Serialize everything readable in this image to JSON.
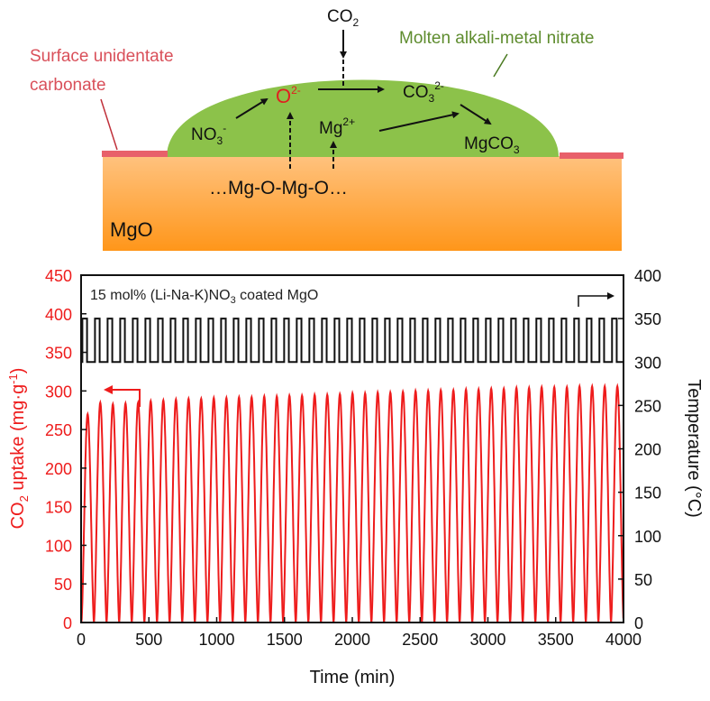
{
  "schematic": {
    "co2": "CO",
    "co2_sub": "2",
    "melt_label": "Molten alkali-metal nitrate",
    "surface_label_1": "Surface unidentate",
    "surface_label_2": "carbonate",
    "o2": "O",
    "o2_sup": "2-",
    "co3": "CO",
    "co3_sub": "3",
    "co3_sup": "2-",
    "no3": "NO",
    "no3_sub": "3",
    "no3_sup": "-",
    "mg": "Mg",
    "mg_sup": "2+",
    "mgco3": "MgCO",
    "mgco3_sub": "3",
    "lattice": "…Mg-O-Mg-O…",
    "substrate": "MgO",
    "colors": {
      "melt": "#8cc24a",
      "substrate_top": "#ffc080",
      "substrate_bottom": "#ff9a1e",
      "carbonate": "#e8606a",
      "label_red": "#d9505a",
      "label_green": "#5e8c2e",
      "o2": "#e02020"
    }
  },
  "chart_data": {
    "type": "line",
    "annotation": "15 mol% (Li-Na-K)NO",
    "annotation_sub": "3",
    "annotation_tail": " coated MgO",
    "xlabel": "Time (min)",
    "ylabel_left": "CO2 uptake (mg·g-1)",
    "ylabel_left_parts": {
      "a": "CO",
      "sub": "2",
      "b": " uptake (mg·g",
      "sup": "-1",
      "c": ")"
    },
    "ylabel_right": "Temperature (°C)",
    "xlim": [
      0,
      4000
    ],
    "ylim_left": [
      0,
      450
    ],
    "ylim_right": [
      0,
      400
    ],
    "x_ticks": [
      "0",
      "500",
      "1000",
      "1500",
      "2000",
      "2500",
      "3000",
      "3500",
      "4000"
    ],
    "y_left_ticks": [
      "0",
      "50",
      "100",
      "150",
      "200",
      "250",
      "300",
      "350",
      "400",
      "450"
    ],
    "y_right_ticks": [
      "0",
      "50",
      "100",
      "150",
      "200",
      "250",
      "300",
      "350",
      "400"
    ],
    "cycle_period_min": 93,
    "temperature_low": 300,
    "temperature_high": 350,
    "series": [
      {
        "name": "CO2 uptake",
        "axis": "left",
        "color": "#ee1c1c",
        "cycle_peaks": [
          270,
          285,
          283,
          284,
          285,
          287,
          288,
          289,
          290,
          290,
          291,
          291,
          292,
          292,
          293,
          293,
          294,
          294,
          295,
          295,
          296,
          297,
          297,
          298,
          298,
          299,
          300,
          300,
          301,
          301,
          302,
          302,
          303,
          303,
          304,
          304,
          305,
          305,
          305,
          306,
          306,
          306,
          306
        ]
      },
      {
        "name": "Temperature",
        "axis": "right",
        "color": "#111111"
      }
    ]
  }
}
